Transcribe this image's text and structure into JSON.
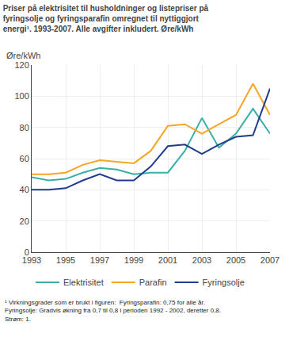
{
  "chart_data": {
    "type": "line",
    "title": "Priser på elektrisitet til husholdninger og listepriser på\nfyringsolje og fyringsparafin omregnet til nyttiggjort\nenergi¹. 1993-2007. Alle avgifter inkludert. Øre/kWh",
    "ylabel": "Øre/kWh",
    "footnote": "¹ Virkningsgrader som er brukt i figuren:  Fyringsparafin: 0,75 for alle år.\nFyringsolje: Gradvis økning fra 0,7 til 0,8 i perioden 1992 - 2002, deretter 0,8.\nStrøm: 1.",
    "x": [
      1993,
      1994,
      1995,
      1996,
      1997,
      1998,
      1999,
      2000,
      2001,
      2002,
      2003,
      2004,
      2005,
      2006,
      2007
    ],
    "series": [
      {
        "name": "Elektrisitet",
        "color": "#3aafa9",
        "values": [
          48,
          46,
          47,
          51,
          54,
          53,
          50,
          51,
          51,
          65,
          86,
          67,
          76,
          92,
          76
        ]
      },
      {
        "name": "Parafin",
        "color": "#f5a623",
        "values": [
          50,
          50,
          51,
          56,
          59,
          58,
          57,
          65,
          81,
          82,
          76,
          82,
          88,
          108,
          88
        ]
      },
      {
        "name": "Fyringsolje",
        "color": "#1f3d8c",
        "values": [
          40,
          40,
          41,
          46,
          50,
          46,
          46,
          55,
          68,
          69,
          63,
          69,
          74,
          75,
          105
        ]
      }
    ],
    "xlim": [
      1993,
      2007
    ],
    "xticks": [
      1993,
      1995,
      1997,
      1999,
      2001,
      2003,
      2005,
      2007
    ],
    "ylim": [
      0,
      120
    ],
    "yticks": [
      0,
      20,
      40,
      60,
      80,
      100,
      120
    ],
    "grid": true,
    "legend": "bottom"
  }
}
